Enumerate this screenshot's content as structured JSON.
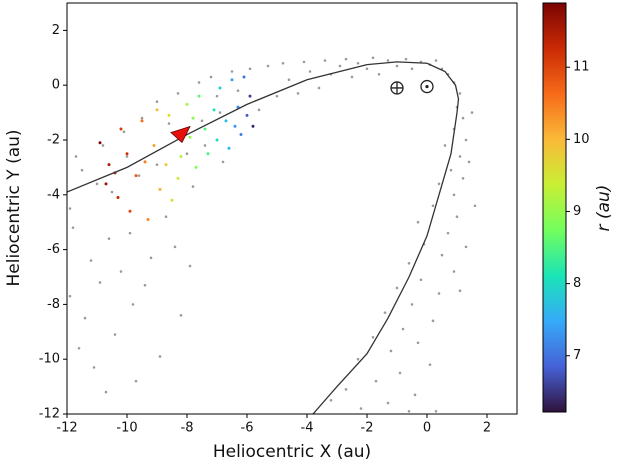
{
  "chart_data": {
    "type": "scatter",
    "xlabel": "Heliocentric X (au)",
    "ylabel": "Heliocentric Y (au)",
    "xlim": [
      -12,
      3
    ],
    "ylim": [
      -12,
      3
    ],
    "xticks": [
      -12,
      -10,
      -8,
      -6,
      -4,
      -2,
      0,
      2
    ],
    "yticks": [
      -12,
      -10,
      -8,
      -6,
      -4,
      -2,
      0,
      2
    ],
    "cloud": {
      "color": "#9a9a9a",
      "x": [
        -11.8,
        -11.5,
        -11.2,
        -11.9,
        -10.9,
        -11.4,
        -10.6,
        -11.7,
        -10.2,
        -9.8,
        -10.8,
        -10.1,
        -9.5,
        -9.9,
        -9.2,
        -8.7,
        -8.4,
        -9.0,
        -8.3,
        -7.8,
        -7.6,
        -7.2,
        -6.8,
        -6.5,
        -6.9,
        -7.4,
        -5.9,
        -5.6,
        -5.3,
        -5.0,
        -4.8,
        -4.6,
        -4.3,
        -4.1,
        -3.9,
        -3.6,
        -3.4,
        -3.2,
        -2.9,
        -2.7,
        -2.5,
        -2.3,
        -2.0,
        -1.8,
        -1.6,
        -1.3,
        -1.0,
        -0.7,
        -0.5,
        -0.2,
        0.1,
        0.3,
        0.5,
        0.7,
        0.9,
        1.1,
        1.0,
        1.2,
        0.9,
        1.3,
        0.6,
        1.1,
        0.8,
        1.2,
        0.4,
        0.9,
        0.2,
        1.0,
        -0.3,
        0.7,
        -0.1,
        0.5,
        -0.6,
        0.9,
        -0.2,
        -1.0,
        0.4,
        -0.5,
        -1.4,
        0.2,
        -0.8,
        -1.8,
        -0.3,
        -1.2,
        -2.3,
        0.1,
        -0.9,
        -1.7,
        -2.7,
        -0.4,
        -1.3,
        -2.2,
        -3.2,
        0.3,
        -0.6,
        1.5,
        1.4,
        1.6,
        1.3,
        1.1,
        -11.0,
        -10.5,
        -10.0,
        -9.6,
        -9.0,
        -8.6,
        -8.0,
        -7.5,
        -7.0,
        -6.3,
        -11.6,
        -10.4,
        -11.1,
        -9.4,
        -8.9,
        -10.7,
        -9.7,
        -11.9,
        -8.2,
        -7.9
      ],
      "y": [
        -5.2,
        -3.1,
        -6.4,
        -4.5,
        -7.2,
        -8.5,
        -5.6,
        -2.6,
        -6.8,
        -8.0,
        -2.2,
        -1.7,
        -1.2,
        -5.4,
        -6.3,
        -4.8,
        -5.9,
        -0.6,
        -0.3,
        -3.7,
        0.1,
        0.3,
        -2.8,
        0.5,
        -1.0,
        -2.2,
        0.6,
        -0.9,
        0.7,
        -0.4,
        0.8,
        0.2,
        -0.3,
        0.85,
        0.5,
        -0.1,
        0.9,
        0.4,
        0.7,
        0.95,
        0.3,
        0.8,
        0.6,
        1.0,
        0.4,
        0.9,
        0.7,
        0.95,
        0.6,
        0.85,
        0.75,
        0.9,
        0.6,
        0.4,
        0.1,
        -0.3,
        -0.8,
        -1.2,
        -1.6,
        -2.0,
        -2.2,
        -2.6,
        -3.1,
        -3.4,
        -3.6,
        -4.0,
        -4.4,
        -4.8,
        -5.0,
        -5.4,
        -5.8,
        -6.2,
        -6.5,
        -6.8,
        -7.1,
        -7.4,
        -7.6,
        -8.0,
        -8.3,
        -8.6,
        -8.9,
        -9.2,
        -9.4,
        -9.7,
        -10.0,
        -10.2,
        -10.5,
        -10.8,
        -11.1,
        -11.3,
        -11.6,
        -11.8,
        -11.5,
        -11.9,
        -11.9,
        -1.0,
        -2.8,
        -4.4,
        -5.9,
        -7.5,
        -3.6,
        -3.9,
        -2.6,
        -3.3,
        -2.9,
        -1.4,
        -2.5,
        -1.3,
        -0.4,
        -0.2,
        -9.6,
        -9.1,
        -10.3,
        -7.3,
        -9.9,
        -11.2,
        -10.8,
        -7.7,
        -8.4,
        -6.6
      ]
    },
    "colored": {
      "x": [
        -10.9,
        -10.6,
        -10.3,
        -10.7,
        -10.2,
        -9.9,
        -10.0,
        -9.7,
        -9.5,
        -9.3,
        -9.1,
        -8.9,
        -9.0,
        -8.7,
        -8.5,
        -8.6,
        -8.3,
        -8.0,
        -8.2,
        -7.9,
        -7.7,
        -7.6,
        -7.4,
        -7.3,
        -7.1,
        -7.0,
        -6.9,
        -6.7,
        -6.6,
        -6.5,
        -6.3,
        -6.2,
        -6.1,
        -6.0,
        -5.9,
        -5.8,
        -6.4,
        -7.8,
        -9.4,
        -10.4
      ],
      "y": [
        -2.1,
        -2.9,
        -4.1,
        -3.6,
        -1.6,
        -4.6,
        -2.5,
        -3.3,
        -1.3,
        -4.9,
        -2.2,
        -3.8,
        -0.9,
        -2.9,
        -4.2,
        -1.1,
        -3.4,
        -0.7,
        -2.6,
        -1.9,
        -3.0,
        -0.4,
        -1.6,
        -2.5,
        -0.9,
        -2.0,
        -0.1,
        -1.3,
        -2.3,
        0.2,
        -0.8,
        -1.8,
        0.3,
        -1.1,
        -0.4,
        -1.5,
        -1.5,
        -1.2,
        -2.8,
        -3.2
      ],
      "r": [
        11.8,
        11.5,
        11.3,
        11.6,
        11.1,
        11.0,
        11.2,
        10.8,
        10.6,
        10.4,
        10.2,
        10.1,
        10.0,
        9.8,
        9.6,
        9.6,
        9.4,
        9.1,
        9.2,
        9.0,
        8.8,
        8.6,
        8.5,
        8.4,
        8.1,
        8.0,
        7.9,
        7.7,
        7.6,
        7.4,
        7.2,
        7.1,
        7.0,
        6.8,
        6.6,
        6.4,
        7.3,
        8.9,
        10.5,
        11.4
      ]
    },
    "orbit": {
      "color": "#333333",
      "x": [
        -12,
        -10,
        -8,
        -6,
        -4,
        -2,
        -1,
        0,
        0.6,
        0.95,
        1.05,
        1.0,
        0.8,
        0.4,
        0,
        -0.6,
        -1.3,
        -2.0,
        -3.0,
        -3.8
      ],
      "y": [
        -3.9,
        -3.0,
        -1.8,
        -0.7,
        0.2,
        0.75,
        0.85,
        0.8,
        0.5,
        0.0,
        -0.5,
        -1.0,
        -2.5,
        -4.0,
        -5.5,
        -7.0,
        -8.5,
        -9.8,
        -11.0,
        -12.0
      ]
    },
    "comet": {
      "x": -8.3,
      "y": -1.8,
      "color": "#e8100c"
    },
    "earth": {
      "x": -1.0,
      "y": -0.1
    },
    "sun": {
      "x": 0.0,
      "y": -0.05
    },
    "colorbar": {
      "label": "r (au)",
      "clim": [
        6.22,
        11.89
      ],
      "ticks": [
        7,
        8,
        9,
        10,
        11
      ],
      "colormap": [
        "#30123b",
        "#4662d7",
        "#36aaf9",
        "#1ae4b6",
        "#72fe5e",
        "#c8ef34",
        "#faba39",
        "#f66b19",
        "#ca2a04",
        "#7a0403"
      ]
    }
  }
}
